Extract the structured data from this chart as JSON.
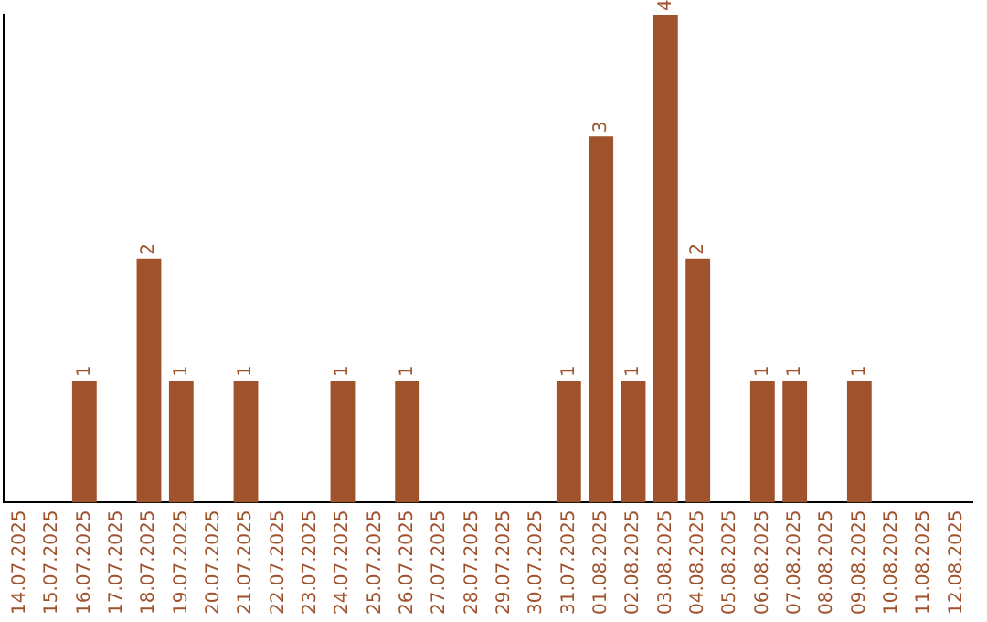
{
  "chart_data": {
    "type": "bar",
    "categories": [
      "14.07.2025",
      "15.07.2025",
      "16.07.2025",
      "17.07.2025",
      "18.07.2025",
      "19.07.2025",
      "20.07.2025",
      "21.07.2025",
      "22.07.2025",
      "23.07.2025",
      "24.07.2025",
      "25.07.2025",
      "26.07.2025",
      "27.07.2025",
      "28.07.2025",
      "29.07.2025",
      "30.07.2025",
      "31.07.2025",
      "01.08.2025",
      "02.08.2025",
      "03.08.2025",
      "04.08.2025",
      "05.08.2025",
      "06.08.2025",
      "07.08.2025",
      "08.08.2025",
      "09.08.2025",
      "10.08.2025",
      "11.08.2025",
      "12.08.2025"
    ],
    "values": [
      0,
      0,
      1,
      0,
      2,
      1,
      0,
      1,
      0,
      0,
      1,
      0,
      1,
      0,
      0,
      0,
      0,
      1,
      3,
      1,
      4,
      2,
      0,
      1,
      1,
      0,
      1,
      0,
      0,
      0
    ],
    "value_labels": [
      null,
      null,
      "1",
      null,
      "2",
      "1",
      null,
      "1",
      null,
      null,
      "1",
      null,
      "1",
      null,
      null,
      null,
      null,
      "1",
      "3",
      "1",
      "4",
      "2",
      null,
      "1",
      "1",
      null,
      "1",
      null,
      null,
      null
    ],
    "color": "#a0522d",
    "ylim": [
      0,
      4
    ],
    "grid": false,
    "legend": false,
    "tick_labels": "x"
  }
}
